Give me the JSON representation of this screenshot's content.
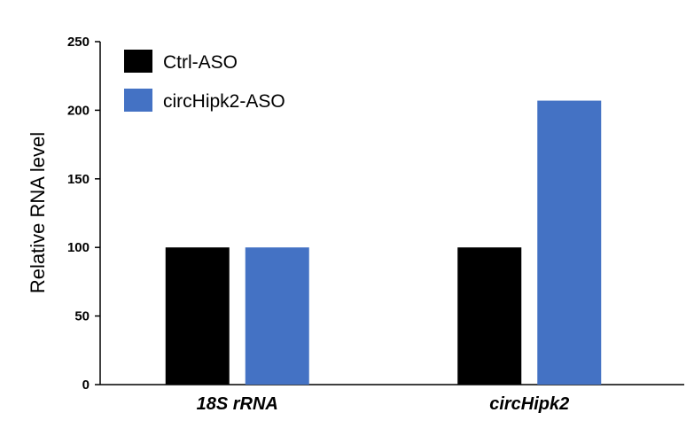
{
  "chart_data": {
    "type": "bar",
    "categories": [
      "18S rRNA",
      "circHipk2"
    ],
    "series": [
      {
        "name": "Ctrl-ASO",
        "values": [
          100,
          100
        ],
        "color": "#000000"
      },
      {
        "name": "circHipk2-ASO",
        "values": [
          100,
          207
        ],
        "color": "#4472C4"
      }
    ],
    "ylabel": "Relative RNA level",
    "ylim": [
      0,
      250
    ],
    "yticks": [
      0,
      50,
      100,
      150,
      200,
      250
    ],
    "grid": false,
    "legend_position": "top-left"
  }
}
